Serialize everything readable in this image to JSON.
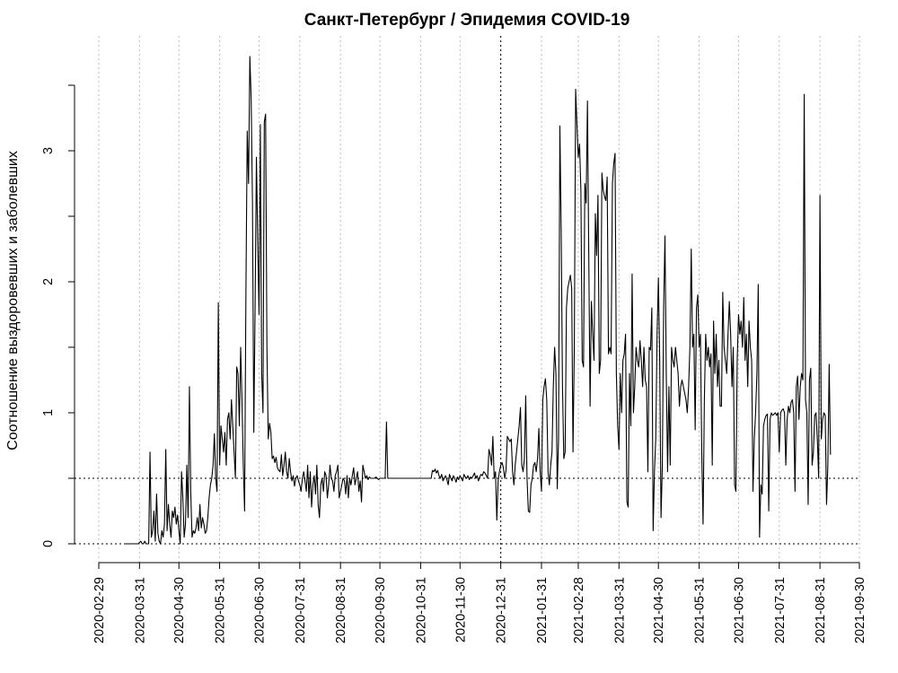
{
  "chart_data": {
    "type": "line",
    "title": "Санкт-Петербург / Эпидемия COVID-19",
    "xlabel": "",
    "ylabel": "Соотношение выздоровевших и заболевших",
    "xlim": [
      "2020-02-29",
      "2021-09-30"
    ],
    "ylim": [
      0,
      3.5
    ],
    "x_ticks": [
      "2020-02-29",
      "2020-03-31",
      "2020-04-30",
      "2020-05-31",
      "2020-06-30",
      "2020-07-31",
      "2020-08-31",
      "2020-09-30",
      "2020-10-31",
      "2020-11-30",
      "2020-12-31",
      "2021-01-31",
      "2021-02-28",
      "2021-03-31",
      "2021-04-30",
      "2021-05-31",
      "2021-06-30",
      "2021-07-31",
      "2021-08-31",
      "2021-09-30"
    ],
    "y_ticks": [
      "0",
      "1",
      "2",
      "3"
    ],
    "grid": {
      "vertical": true,
      "style": "dotted",
      "color": "#bdbdbd"
    },
    "reference_lines": [
      {
        "axis": "y",
        "value": 0.5,
        "style": "dotted"
      },
      {
        "axis": "y",
        "value": 0,
        "style": "dotted"
      },
      {
        "axis": "x",
        "value": "2020-12-31",
        "style": "dotted"
      }
    ],
    "line_color": "#000000",
    "series": [
      {
        "x_start": "2020-03-20",
        "x_step_days": 1,
        "values": [
          0,
          0,
          0,
          0,
          0,
          0,
          0,
          0,
          0,
          0,
          0,
          0.01,
          0.02,
          0.0,
          0.0,
          0.02,
          0.0,
          0.0,
          0.0,
          0.7,
          0.05,
          0.1,
          0.25,
          0.02,
          0.38,
          0.08,
          0.02,
          0.0,
          0.1,
          0.05,
          0.15,
          0.72,
          0.1,
          0.3,
          0.15,
          0.05,
          0.25,
          0.2,
          0.28,
          0.15,
          0.22,
          0.1,
          0.0,
          0.55,
          0.35,
          0.05,
          0.15,
          0.6,
          0.2,
          1.2,
          0.4,
          0.05,
          0.1,
          0.08,
          0.12,
          0.2,
          0.1,
          0.3,
          0.12,
          0.2,
          0.15,
          0.08,
          0.1,
          0.2,
          0.35,
          0.45,
          0.5,
          0.6,
          0.84,
          0.5,
          0.4,
          1.84,
          0.6,
          0.9,
          0.8,
          0.7,
          0.85,
          0.6,
          0.95,
          1.0,
          0.8,
          1.1,
          0.9,
          0.7,
          0.5,
          1.35,
          1.3,
          0.9,
          1.5,
          1.1,
          0.6,
          0.25,
          1.9,
          3.15,
          2.75,
          3.72,
          3.4,
          2.6,
          0.85,
          1.8,
          2.95,
          2.3,
          1.75,
          3.2,
          1.3,
          1.0,
          3.22,
          3.28,
          1.5,
          0.8,
          0.92,
          0.85,
          0.65,
          0.67,
          0.62,
          0.66,
          0.58,
          0.56,
          0.55,
          0.68,
          0.52,
          0.6,
          0.7,
          0.55,
          0.5,
          0.65,
          0.55,
          0.48,
          0.52,
          0.44,
          0.5,
          0.52,
          0.48,
          0.45,
          0.4,
          0.5,
          0.55,
          0.48,
          0.4,
          0.6,
          0.35,
          0.55,
          0.28,
          0.45,
          0.52,
          0.38,
          0.6,
          0.3,
          0.2,
          0.45,
          0.5,
          0.4,
          0.55,
          0.52,
          0.35,
          0.45,
          0.6,
          0.5,
          0.48,
          0.4,
          0.52,
          0.55,
          0.6,
          0.35,
          0.4,
          0.45,
          0.5,
          0.48,
          0.38,
          0.52,
          0.35,
          0.5,
          0.45,
          0.52,
          0.58,
          0.45,
          0.5,
          0.55,
          0.4,
          0.48,
          0.32,
          0.6,
          0.55,
          0.5,
          0.52,
          0.49,
          0.51,
          0.5,
          0.5,
          0.5,
          0.5,
          0.51,
          0.5,
          0.49,
          0.5,
          0.5,
          0.5,
          0.5,
          0.5,
          0.93,
          0.5,
          0.5,
          0.5,
          0.5,
          0.5,
          0.5,
          0.5,
          0.5,
          0.5,
          0.5,
          0.5,
          0.5,
          0.5,
          0.5,
          0.5,
          0.5,
          0.5,
          0.5,
          0.5,
          0.5,
          0.5,
          0.5,
          0.5,
          0.5,
          0.5,
          0.5,
          0.5,
          0.5,
          0.5,
          0.5,
          0.5,
          0.5,
          0.5,
          0.5,
          0.56,
          0.55,
          0.57,
          0.54,
          0.56,
          0.52,
          0.5,
          0.53,
          0.48,
          0.5,
          0.52,
          0.49,
          0.45,
          0.53,
          0.5,
          0.48,
          0.52,
          0.5,
          0.47,
          0.51,
          0.49,
          0.52,
          0.5,
          0.48,
          0.53,
          0.51,
          0.5,
          0.52,
          0.49,
          0.51,
          0.5,
          0.52,
          0.54,
          0.5,
          0.52,
          0.48,
          0.51,
          0.53,
          0.52,
          0.55,
          0.54,
          0.52,
          0.5,
          0.72,
          0.68,
          0.6,
          0.82,
          0.5,
          0.55,
          0.18,
          0.48,
          0.55,
          0.6,
          0.62,
          0.58,
          0.5,
          0.56,
          0.82,
          0.8,
          0.78,
          0.8,
          0.55,
          0.45,
          0.6,
          0.7,
          0.8,
          0.9,
          1.04,
          0.6,
          0.55,
          0.65,
          1.13,
          0.5,
          0.25,
          0.24,
          0.45,
          0.5,
          0.6,
          0.62,
          0.55,
          0.65,
          0.88,
          0.55,
          0.4,
          1.1,
          1.2,
          1.26,
          1.1,
          0.55,
          0.45,
          0.6,
          0.7,
          1.2,
          1.5,
          1.3,
          0.42,
          0.8,
          3.19,
          2.4,
          1.2,
          0.65,
          0.7,
          1.8,
          1.95,
          2.0,
          2.05,
          1.95,
          0.7,
          1.5,
          3.47,
          3.2,
          2.95,
          3.05,
          2.7,
          1.4,
          1.35,
          2.75,
          2.6,
          3.38,
          2.2,
          1.05,
          1.85,
          1.6,
          1.4,
          2.52,
          2.2,
          2.66,
          1.3,
          1.4,
          2.83,
          2.7,
          2.65,
          2.62,
          2.8,
          1.45,
          1.5,
          1.45,
          2.75,
          2.9,
          2.98,
          1.3,
          0.9,
          0.72,
          1.3,
          1.0,
          1.4,
          1.45,
          1.6,
          0.32,
          0.28,
          1.3,
          0.9,
          2.06,
          1.0,
          1.2,
          1.5,
          1.4,
          1.35,
          1.55,
          1.4,
          1.2,
          1.5,
          1.25,
          1.2,
          0.55,
          1.5,
          1.48,
          1.8,
          0.1,
          0.55,
          0.8,
          1.6,
          2.03,
          1.4,
          0.2,
          0.6,
          1.8,
          2.35,
          1.3,
          0.55,
          1.2,
          0.6,
          1.5,
          1.4,
          1.35,
          1.5,
          1.4,
          1.3,
          1.05,
          1.2,
          1.25,
          1.2,
          1.15,
          1.1,
          1.0,
          1.2,
          1.5,
          2.25,
          1.5,
          1.6,
          0.87,
          1.8,
          1.9,
          1.5,
          1.6,
          0.7,
          0.15,
          1.1,
          1.6,
          1.4,
          1.5,
          1.35,
          1.45,
          0.6,
          1.7,
          1.3,
          1.6,
          1.2,
          1.4,
          1.05,
          1.05,
          1.92,
          1.5,
          1.4,
          1.3,
          1.6,
          1.85,
          1.6,
          1.2,
          1.5,
          0.45,
          0.4,
          1.4,
          1.75,
          1.6,
          1.7,
          1.5,
          1.88,
          1.4,
          1.6,
          1.2,
          1.7,
          1.5,
          1.4,
          0.4,
          0.8,
          1.0,
          1.3,
          1.98,
          0.05,
          0.45,
          0.38,
          0.9,
          0.95,
          0.98,
          0.99,
          0.25,
          0.95,
          1.0,
          0.98,
          0.99,
          1.0,
          0.98,
          1.0,
          0.7,
          1.0,
          1.02,
          1.03,
          1.0,
          0.6,
          0.95,
          1.05,
          1.0,
          1.08,
          1.1,
          1.0,
          0.4,
          1.2,
          1.28,
          0.95,
          1.2,
          1.3,
          1.25,
          3.43,
          1.1,
          1.0,
          0.3,
          1.25,
          1.34,
          0.6,
          0.7,
          0.98,
          1.0,
          0.8,
          0.5,
          2.66,
          0.8,
          0.95,
          1.0,
          0.98,
          0.3,
          0.6,
          1.37,
          0.68
        ]
      }
    ]
  }
}
